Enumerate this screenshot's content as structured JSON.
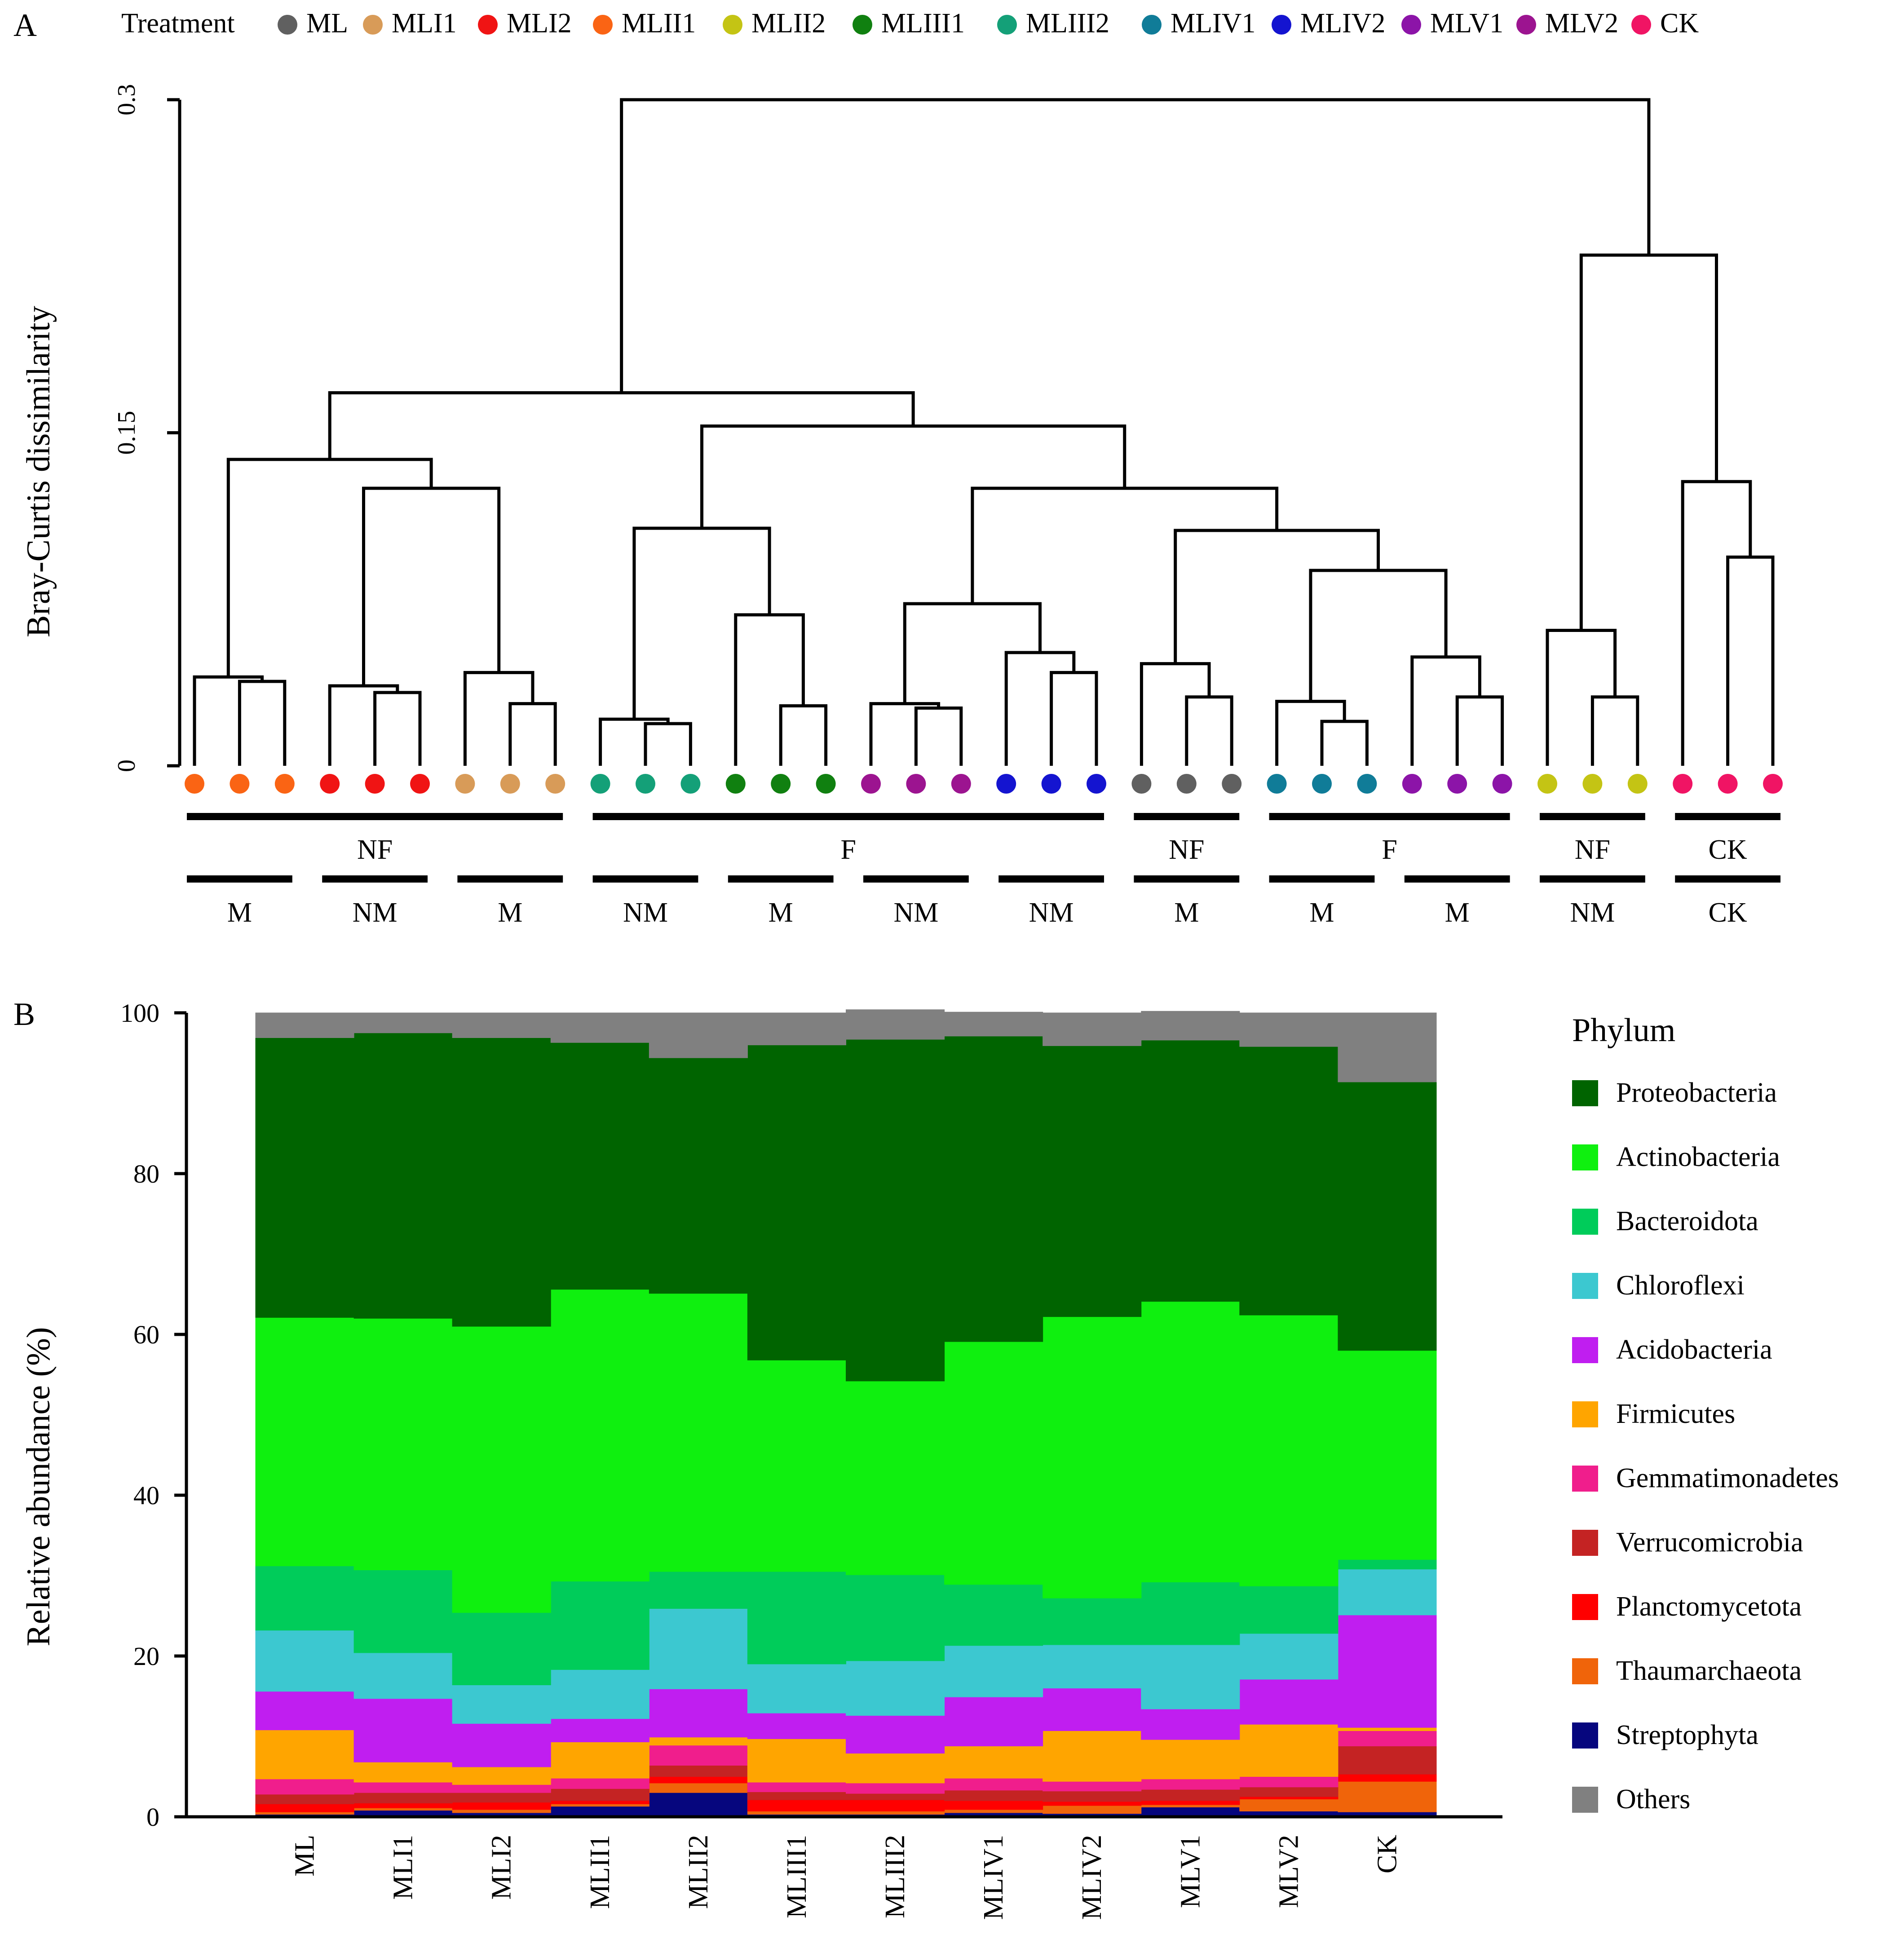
{
  "panel_a": {
    "label": "A",
    "legend_title": "Treatment",
    "ylabel": "Bray-Curtis dissimilarity",
    "yticks": [
      0,
      0.15,
      0.3
    ],
    "ytick_labels": [
      "0",
      "0.15",
      "0.3"
    ],
    "treatments": [
      {
        "name": "ML",
        "color": "#606060"
      },
      {
        "name": "MLI1",
        "color": "#d89b58"
      },
      {
        "name": "MLI2",
        "color": "#f01414"
      },
      {
        "name": "MLII1",
        "color": "#fa6414"
      },
      {
        "name": "MLII2",
        "color": "#c4c414"
      },
      {
        "name": "MLIII1",
        "color": "#108010"
      },
      {
        "name": "MLIII2",
        "color": "#14a078"
      },
      {
        "name": "MLIV1",
        "color": "#107c98"
      },
      {
        "name": "MLIV2",
        "color": "#1414d0"
      },
      {
        "name": "MLV1",
        "color": "#8c14a8"
      },
      {
        "name": "MLV2",
        "color": "#9c1490"
      },
      {
        "name": "CK",
        "color": "#f01464"
      }
    ],
    "leaves": [
      "MLII1",
      "MLII1",
      "MLII1",
      "MLI2",
      "MLI2",
      "MLI2",
      "MLI1",
      "MLI1",
      "MLI1",
      "MLIII2",
      "MLIII2",
      "MLIII2",
      "MLIII1",
      "MLIII1",
      "MLIII1",
      "MLV2",
      "MLV2",
      "MLV2",
      "MLIV2",
      "MLIV2",
      "MLIV2",
      "ML",
      "ML",
      "ML",
      "MLIV1",
      "MLIV1",
      "MLIV1",
      "MLV1",
      "MLV1",
      "MLV1",
      "MLII2",
      "MLII2",
      "MLII2",
      "CK",
      "CK",
      "CK"
    ],
    "merges": [
      [
        1,
        2,
        0.038
      ],
      [
        0,
        -1,
        0.04
      ],
      [
        4,
        5,
        0.033
      ],
      [
        3,
        -3,
        0.036
      ],
      [
        7,
        8,
        0.028
      ],
      [
        6,
        -5,
        0.042
      ],
      [
        -4,
        -6,
        0.125
      ],
      [
        -2,
        -7,
        0.138
      ],
      [
        10,
        11,
        0.019
      ],
      [
        9,
        -9,
        0.021
      ],
      [
        13,
        14,
        0.027
      ],
      [
        12,
        -11,
        0.068
      ],
      [
        -10,
        -12,
        0.107
      ],
      [
        16,
        17,
        0.026
      ],
      [
        15,
        -14,
        0.028
      ],
      [
        19,
        20,
        0.042
      ],
      [
        18,
        -16,
        0.051
      ],
      [
        -15,
        -17,
        0.073
      ],
      [
        22,
        23,
        0.031
      ],
      [
        21,
        -19,
        0.046
      ],
      [
        25,
        26,
        0.02
      ],
      [
        24,
        -21,
        0.029
      ],
      [
        28,
        29,
        0.031
      ],
      [
        27,
        -23,
        0.049
      ],
      [
        -22,
        -24,
        0.088
      ],
      [
        -20,
        -25,
        0.106
      ],
      [
        -18,
        -26,
        0.125
      ],
      [
        -13,
        -27,
        0.153
      ],
      [
        -8,
        -28,
        0.168
      ],
      [
        31,
        32,
        0.031
      ],
      [
        30,
        -30,
        0.061
      ],
      [
        34,
        35,
        0.094
      ],
      [
        33,
        -32,
        0.128
      ],
      [
        -31,
        -33,
        0.23
      ],
      [
        -29,
        -34,
        0.3
      ]
    ],
    "groups_row1": [
      {
        "label": "NF",
        "from": 0,
        "to": 8
      },
      {
        "label": "F",
        "from": 9,
        "to": 20
      },
      {
        "label": "NF",
        "from": 21,
        "to": 23
      },
      {
        "label": "F",
        "from": 24,
        "to": 29
      },
      {
        "label": "NF",
        "from": 30,
        "to": 32
      },
      {
        "label": "CK",
        "from": 33,
        "to": 35
      }
    ],
    "groups_row2": [
      {
        "label": "M",
        "from": 0,
        "to": 2
      },
      {
        "label": "NM",
        "from": 3,
        "to": 5
      },
      {
        "label": "M",
        "from": 6,
        "to": 8
      },
      {
        "label": "NM",
        "from": 9,
        "to": 11
      },
      {
        "label": "M",
        "from": 12,
        "to": 14
      },
      {
        "label": "NM",
        "from": 15,
        "to": 17
      },
      {
        "label": "NM",
        "from": 18,
        "to": 20
      },
      {
        "label": "M",
        "from": 21,
        "to": 23
      },
      {
        "label": "M",
        "from": 24,
        "to": 26
      },
      {
        "label": "M",
        "from": 27,
        "to": 29
      },
      {
        "label": "NM",
        "from": 30,
        "to": 32
      },
      {
        "label": "CK",
        "from": 33,
        "to": 35
      }
    ]
  },
  "chart_data": {
    "type": "area",
    "stacked": true,
    "title": "",
    "panel_label": "B",
    "xlabel": "",
    "ylabel": "Relative abundance (%)",
    "ylim": [
      0,
      100
    ],
    "yticks": [
      0,
      20,
      40,
      60,
      80,
      100
    ],
    "legend_title": "Phylum",
    "legend_position": "right",
    "categories": [
      "ML",
      "MLI1",
      "MLI2",
      "MLII1",
      "MLII2",
      "MLIII1",
      "MLIII2",
      "MLIV1",
      "MLIV2",
      "MLV1",
      "MLV2",
      "CK"
    ],
    "series": [
      {
        "name": "Streptophyta",
        "color": "#06067e",
        "values": [
          0.3,
          0.8,
          0.5,
          1.3,
          3.0,
          0.3,
          0.3,
          0.5,
          0.4,
          1.2,
          0.7,
          0.6
        ]
      },
      {
        "name": "Thaumarchaeota",
        "color": "#f0640a",
        "values": [
          0.3,
          0.3,
          0.4,
          0.3,
          1.2,
          0.4,
          0.4,
          0.4,
          1.0,
          0.3,
          1.5,
          3.8
        ]
      },
      {
        "name": "Planctomycetota",
        "color": "#ff0000",
        "values": [
          1.0,
          0.6,
          0.9,
          0.4,
          0.8,
          1.4,
          1.4,
          1.1,
          0.5,
          0.5,
          0.3,
          0.9
        ]
      },
      {
        "name": "Verrucomicrobia",
        "color": "#c42323",
        "values": [
          1.2,
          1.3,
          1.2,
          1.5,
          1.4,
          1.0,
          0.8,
          1.3,
          1.3,
          1.4,
          1.2,
          3.5
        ]
      },
      {
        "name": "Gemmatimonadetes",
        "color": "#f01e8c",
        "values": [
          1.9,
          1.3,
          1.0,
          1.3,
          2.5,
          1.2,
          1.3,
          1.5,
          1.2,
          1.3,
          1.3,
          1.9
        ]
      },
      {
        "name": "Firmicutes",
        "color": "#ffa500",
        "values": [
          6.1,
          2.5,
          2.2,
          4.5,
          1.0,
          5.4,
          3.7,
          4.0,
          6.3,
          4.9,
          6.5,
          0.4
        ]
      },
      {
        "name": "Acidobacteria",
        "color": "#c01ef0",
        "values": [
          4.8,
          7.9,
          5.4,
          2.9,
          6.0,
          3.2,
          4.7,
          6.1,
          5.3,
          3.8,
          5.6,
          14.0
        ]
      },
      {
        "name": "Chloroflexi",
        "color": "#3cc8d0",
        "values": [
          7.6,
          5.7,
          4.8,
          6.1,
          10.0,
          6.1,
          6.8,
          6.4,
          5.4,
          8.0,
          5.7,
          5.7
        ]
      },
      {
        "name": "Bacteroidota",
        "color": "#00cc5a",
        "values": [
          8.0,
          10.3,
          9.0,
          11.0,
          4.6,
          11.5,
          10.7,
          7.6,
          5.8,
          7.8,
          5.9,
          1.2
        ]
      },
      {
        "name": "Actinobacteria",
        "color": "#0ff00f",
        "values": [
          30.9,
          31.3,
          35.6,
          36.3,
          34.6,
          26.3,
          24.1,
          30.2,
          35.0,
          34.9,
          33.7,
          26.0
        ]
      },
      {
        "name": "Proteobacteria",
        "color": "#006400",
        "values": [
          34.8,
          35.5,
          35.9,
          30.7,
          29.3,
          39.2,
          42.5,
          38.0,
          33.7,
          32.5,
          33.4,
          33.4
        ]
      },
      {
        "name": "Others",
        "color": "#808080",
        "values": [
          3.1,
          2.5,
          3.1,
          3.7,
          5.6,
          4.0,
          3.7,
          3.0,
          4.1,
          3.6,
          4.2,
          8.6
        ]
      }
    ]
  }
}
